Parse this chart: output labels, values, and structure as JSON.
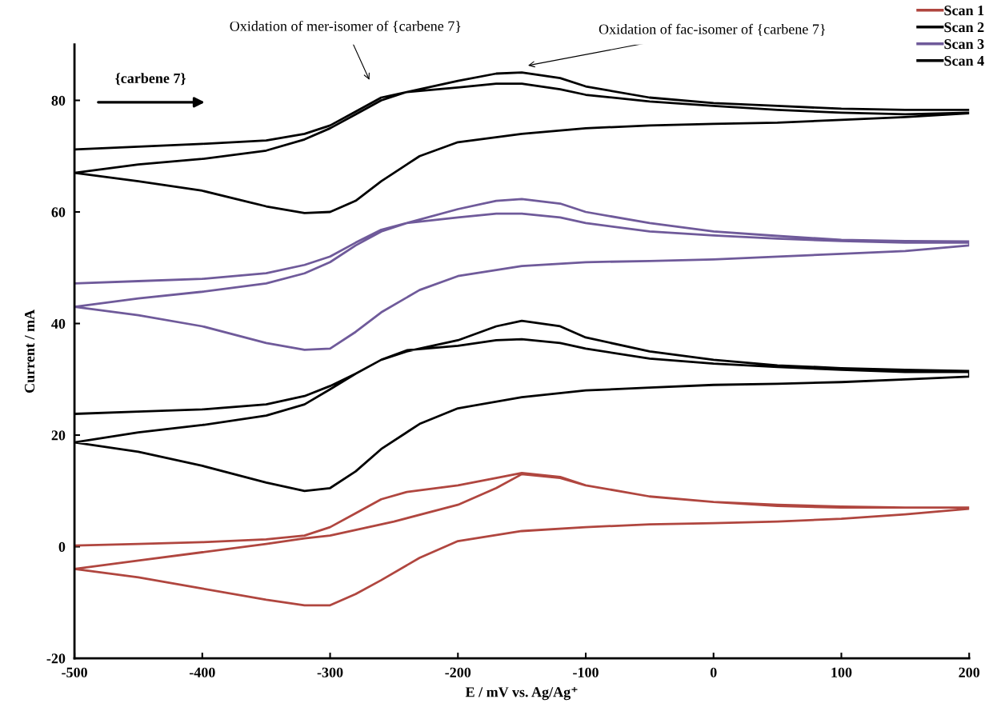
{
  "chart_data": {
    "type": "line",
    "xlabel": "E / mV vs. Ag/Ag⁺",
    "ylabel": "Current / mA",
    "xlim": [
      -500,
      200
    ],
    "xticks": [
      -500,
      -400,
      -300,
      -200,
      -100,
      0,
      100,
      200
    ],
    "ylim": [
      -20,
      90
    ],
    "yticks": [
      -20,
      0,
      20,
      40,
      60,
      80
    ],
    "grid": false,
    "legend": "top right",
    "line_style": "solid",
    "marker": "none",
    "annotations": [
      "Oxidation of mer-isomer of {carbene 7}",
      "Oxidation of fac-isomer of {carbene 7}",
      "{carbene 7}"
    ],
    "series": [
      {
        "name": "Scan 1",
        "color": "#b0463f",
        "x": [
          -500,
          -450,
          -400,
          -350,
          -320,
          -300,
          -280,
          -260,
          -240,
          -200,
          -170,
          -150,
          -120,
          -100,
          -50,
          0,
          50,
          100,
          150,
          200,
          200,
          150,
          100,
          50,
          0,
          -50,
          -100,
          -150,
          -200,
          -230,
          -260,
          -280,
          -300,
          -320,
          -350,
          -400,
          -450,
          -500,
          -500,
          -450,
          -400,
          -350,
          -320,
          -300,
          -280,
          -250,
          -200,
          -170,
          -150,
          -120,
          -100,
          -50,
          0,
          50,
          100,
          150,
          200
        ],
        "values": [
          0.2,
          0.5,
          0.8,
          1.3,
          2,
          3.5,
          6,
          8.5,
          9.8,
          11,
          12.3,
          13.2,
          12.5,
          11,
          9,
          8,
          7.5,
          7.2,
          7,
          7,
          6.8,
          5.8,
          5,
          4.5,
          4.2,
          4,
          3.5,
          2.8,
          1,
          -2,
          -6,
          -8.5,
          -10.5,
          -10.5,
          -9.5,
          -7.5,
          -5.5,
          -4,
          -4,
          -2.5,
          -1,
          0.5,
          1.5,
          2,
          3,
          4.5,
          7.5,
          10.5,
          13,
          12.3,
          11,
          9,
          8,
          7.3,
          7,
          7,
          7
        ]
      },
      {
        "name": "Scan 2",
        "color": "#000000",
        "x": [
          -500,
          -450,
          -400,
          -350,
          -320,
          -300,
          -280,
          -260,
          -240,
          -200,
          -170,
          -150,
          -120,
          -100,
          -50,
          0,
          50,
          100,
          150,
          200,
          200,
          150,
          100,
          50,
          0,
          -50,
          -100,
          -150,
          -200,
          -230,
          -260,
          -280,
          -300,
          -320,
          -350,
          -400,
          -450,
          -500,
          -500,
          -450,
          -400,
          -350,
          -320,
          -300,
          -280,
          -260,
          -240,
          -200,
          -170,
          -150,
          -120,
          -100,
          -50,
          0,
          50,
          100,
          150,
          200
        ],
        "values": [
          71.2,
          71.7,
          72.2,
          72.8,
          74,
          75.5,
          78,
          80.5,
          81.5,
          82.3,
          83,
          83,
          82,
          81,
          79.8,
          79,
          78.3,
          77.8,
          77.5,
          77.8,
          77.7,
          77,
          76.5,
          76,
          75.8,
          75.5,
          75,
          74,
          72.5,
          70,
          65.5,
          62,
          60,
          59.8,
          61,
          63.8,
          65.5,
          67,
          67,
          68.5,
          69.5,
          71,
          73,
          75,
          77.5,
          80,
          81.5,
          83.5,
          84.8,
          85,
          84,
          82.5,
          80.5,
          79.5,
          79,
          78.5,
          78.3,
          78.3
        ]
      },
      {
        "name": "Scan 3",
        "color": "#6f5a9a",
        "x": [
          -500,
          -450,
          -400,
          -350,
          -320,
          -300,
          -280,
          -260,
          -240,
          -200,
          -170,
          -150,
          -120,
          -100,
          -50,
          0,
          50,
          100,
          150,
          200,
          200,
          150,
          100,
          50,
          0,
          -50,
          -100,
          -150,
          -200,
          -230,
          -260,
          -280,
          -300,
          -320,
          -350,
          -400,
          -450,
          -500,
          -500,
          -450,
          -400,
          -350,
          -320,
          -300,
          -280,
          -260,
          -240,
          -200,
          -170,
          -150,
          -120,
          -100,
          -50,
          0,
          50,
          100,
          150,
          200
        ],
        "values": [
          47.2,
          47.6,
          48,
          49,
          50.5,
          52,
          54.5,
          56.8,
          58,
          59,
          59.7,
          59.7,
          59,
          58,
          56.5,
          55.8,
          55.2,
          54.8,
          54.5,
          54.5,
          54,
          53,
          52.5,
          52,
          51.5,
          51.2,
          51,
          50.3,
          48.5,
          46,
          42,
          38.5,
          35.5,
          35.3,
          36.5,
          39.5,
          41.5,
          43,
          43,
          44.5,
          45.7,
          47.2,
          49,
          51,
          54,
          56.5,
          58,
          60.5,
          62,
          62.3,
          61.5,
          60,
          58,
          56.5,
          55.7,
          55,
          54.8,
          54.7
        ]
      },
      {
        "name": "Scan 4",
        "color": "#000000",
        "x": [
          -500,
          -450,
          -400,
          -350,
          -320,
          -300,
          -280,
          -260,
          -240,
          -200,
          -170,
          -150,
          -120,
          -100,
          -50,
          0,
          50,
          100,
          150,
          200,
          200,
          150,
          100,
          50,
          0,
          -50,
          -100,
          -150,
          -200,
          -230,
          -260,
          -280,
          -300,
          -320,
          -350,
          -400,
          -450,
          -500,
          -500,
          -450,
          -400,
          -350,
          -320,
          -300,
          -280,
          -260,
          -240,
          -200,
          -170,
          -150,
          -120,
          -100,
          -50,
          0,
          50,
          100,
          150,
          200
        ],
        "values": [
          23.8,
          24.2,
          24.6,
          25.5,
          27,
          28.8,
          31,
          33.5,
          35.2,
          36,
          37,
          37.2,
          36.5,
          35.5,
          33.7,
          32.8,
          32.2,
          31.7,
          31.3,
          31.3,
          30.5,
          30,
          29.5,
          29.2,
          29,
          28.5,
          28,
          26.8,
          24.8,
          22,
          17.5,
          13.5,
          10.5,
          10,
          11.5,
          14.5,
          17,
          18.7,
          18.7,
          20.5,
          21.8,
          23.5,
          25.5,
          28.2,
          31,
          33.5,
          35,
          37,
          39.5,
          40.5,
          39.5,
          37.5,
          35,
          33.5,
          32.5,
          32,
          31.7,
          31.5
        ]
      }
    ]
  }
}
